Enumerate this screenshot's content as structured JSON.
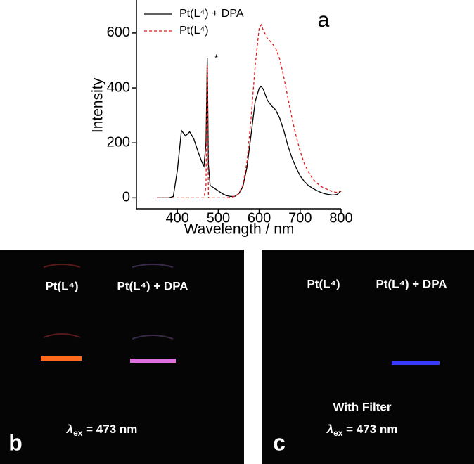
{
  "chart_data": {
    "type": "line",
    "panel_label": "a",
    "ylabel": "Intensity",
    "xlabel": "Wavelength / nm",
    "xlim": [
      300,
      800
    ],
    "xticks": [
      400,
      500,
      600,
      700,
      800
    ],
    "ylim": [
      -40,
      720
    ],
    "yticks": [
      0,
      200,
      400,
      600
    ],
    "legend": "upper left",
    "annotation": "*",
    "annotation_x": 473,
    "annotation_y": 510,
    "x": [
      350,
      360,
      370,
      380,
      390,
      400,
      410,
      420,
      430,
      440,
      450,
      460,
      465,
      470,
      473,
      476,
      480,
      490,
      500,
      510,
      520,
      530,
      540,
      550,
      560,
      570,
      580,
      590,
      600,
      605,
      610,
      620,
      630,
      640,
      650,
      660,
      670,
      680,
      690,
      700,
      710,
      720,
      730,
      740,
      750,
      760,
      770,
      780,
      790,
      800
    ],
    "series": [
      {
        "name": "Pt(L⁴) + DPA",
        "color": "#000000",
        "linestyle": "solid",
        "values": [
          0,
          0,
          0,
          0,
          5,
          100,
          245,
          225,
          240,
          215,
          170,
          130,
          115,
          200,
          510,
          120,
          45,
          35,
          25,
          15,
          8,
          5,
          5,
          15,
          40,
          110,
          230,
          350,
          400,
          405,
          395,
          355,
          335,
          320,
          290,
          245,
          190,
          145,
          110,
          80,
          60,
          45,
          35,
          27,
          20,
          15,
          12,
          10,
          12,
          25
        ]
      },
      {
        "name": "Pt(L⁴)",
        "color": "#e0191b",
        "linestyle": "dashed",
        "values": [
          0,
          0,
          0,
          0,
          0,
          0,
          0,
          0,
          0,
          0,
          0,
          0,
          0,
          40,
          480,
          0,
          0,
          0,
          0,
          0,
          0,
          2,
          5,
          15,
          45,
          130,
          290,
          480,
          620,
          630,
          610,
          580,
          565,
          545,
          505,
          440,
          365,
          290,
          225,
          170,
          125,
          95,
          70,
          55,
          42,
          35,
          28,
          22,
          20,
          25
        ]
      }
    ]
  },
  "photos": [
    {
      "panel_label": "b",
      "samples": [
        "Pt(L⁴)",
        "Pt(L⁴) + DPA"
      ],
      "lambda": "λ",
      "subscript": "ex",
      "excitation": " = 473 nm"
    },
    {
      "panel_label": "c",
      "samples": [
        "Pt(L⁴)",
        "Pt(L⁴) + DPA"
      ],
      "note": "With Filter",
      "lambda": "λ",
      "subscript": "ex",
      "excitation": " = 473 nm"
    }
  ]
}
